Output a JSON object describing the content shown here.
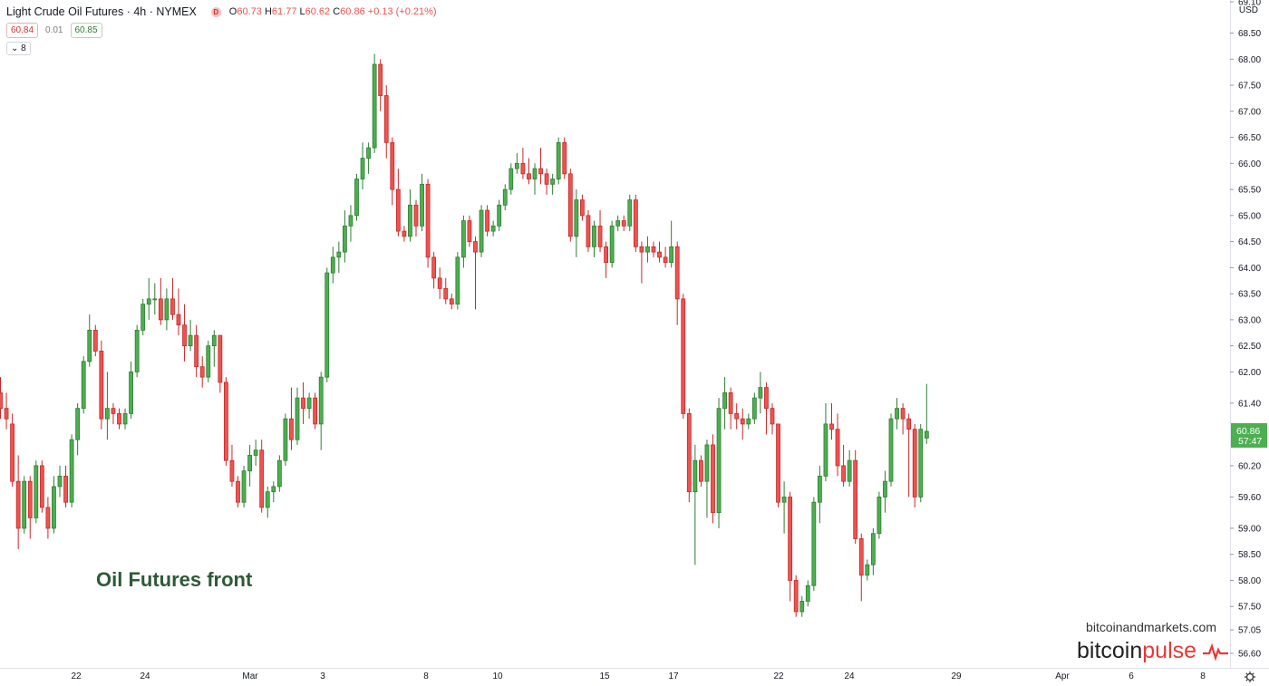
{
  "header": {
    "title": "Light Crude Oil Futures · 4h · NYMEX",
    "badge": "D",
    "ohlc": {
      "o_label": "O",
      "o": "60.73",
      "h_label": "H",
      "h": "61.77",
      "l_label": "L",
      "l": "60.62",
      "c_label": "C",
      "c": "60.86",
      "change": "+0.13 (+0.21%)"
    },
    "sell_price": "60.84",
    "spread": "0.01",
    "buy_price": "60.85",
    "indicator_label": "8"
  },
  "overlay_text": "Oil Futures front",
  "watermark": {
    "site": "bitcoinandmarkets.com",
    "brand_a": "bitcoin",
    "brand_b": "pulse"
  },
  "colors": {
    "up": "#4caf50",
    "down": "#ef5350",
    "up_border": "#2e7d32",
    "down_border": "#c62828",
    "last_price_bg": "#4caf50"
  },
  "chart_data": {
    "type": "candlestick",
    "currency": "USD",
    "y_ticks": [
      "56.60",
      "57.05",
      "57.50",
      "58.00",
      "58.50",
      "59.00",
      "59.60",
      "60.20",
      "61.40",
      "62.00",
      "62.50",
      "63.00",
      "63.50",
      "64.00",
      "64.50",
      "65.00",
      "65.50",
      "66.00",
      "66.50",
      "67.00",
      "67.50",
      "68.00",
      "68.50",
      "69.10"
    ],
    "ylim": [
      56.3,
      69.2
    ],
    "x_ticks": [
      "22",
      "24",
      "Mar",
      "3",
      "8",
      "10",
      "15",
      "17",
      "22",
      "24",
      "29",
      "Apr",
      "6",
      "8"
    ],
    "last_price": "60.86",
    "countdown": "57:47",
    "candles": [
      [
        61.6,
        61.9,
        61.1,
        61.3
      ],
      [
        61.3,
        61.6,
        60.9,
        61.1
      ],
      [
        61.0,
        61.2,
        59.8,
        59.9
      ],
      [
        59.9,
        60.4,
        58.6,
        59.0
      ],
      [
        59.0,
        60.0,
        58.9,
        59.9
      ],
      [
        59.9,
        60.0,
        58.8,
        59.2
      ],
      [
        59.2,
        60.3,
        59.1,
        60.2
      ],
      [
        60.2,
        60.3,
        59.3,
        59.4
      ],
      [
        59.4,
        59.6,
        58.8,
        59.0
      ],
      [
        59.0,
        60.0,
        58.9,
        59.8
      ],
      [
        59.8,
        60.2,
        59.6,
        60.0
      ],
      [
        60.0,
        60.2,
        59.4,
        59.5
      ],
      [
        59.5,
        60.8,
        59.4,
        60.7
      ],
      [
        60.7,
        61.4,
        60.4,
        61.3
      ],
      [
        61.3,
        62.3,
        61.2,
        62.2
      ],
      [
        62.2,
        63.1,
        62.1,
        62.8
      ],
      [
        62.8,
        62.9,
        62.3,
        62.4
      ],
      [
        62.4,
        62.6,
        60.9,
        61.1
      ],
      [
        61.1,
        62.0,
        60.7,
        61.3
      ],
      [
        61.3,
        61.4,
        61.0,
        61.2
      ],
      [
        61.2,
        61.3,
        60.9,
        61.0
      ],
      [
        61.0,
        61.3,
        60.9,
        61.2
      ],
      [
        61.2,
        62.2,
        61.1,
        62.0
      ],
      [
        62.0,
        62.9,
        61.9,
        62.8
      ],
      [
        62.8,
        63.4,
        62.7,
        63.3
      ],
      [
        63.3,
        63.8,
        63.0,
        63.4
      ],
      [
        63.4,
        63.7,
        63.1,
        63.4
      ],
      [
        63.4,
        63.8,
        62.9,
        63.0
      ],
      [
        63.0,
        63.6,
        62.8,
        63.4
      ],
      [
        63.4,
        63.8,
        63.0,
        63.1
      ],
      [
        63.1,
        63.6,
        62.7,
        62.9
      ],
      [
        62.9,
        63.3,
        62.2,
        62.5
      ],
      [
        62.5,
        63.0,
        62.4,
        62.7
      ],
      [
        62.7,
        62.9,
        61.9,
        62.1
      ],
      [
        62.1,
        62.3,
        61.7,
        61.9
      ],
      [
        61.9,
        62.6,
        61.8,
        62.5
      ],
      [
        62.5,
        62.8,
        62.1,
        62.7
      ],
      [
        62.7,
        62.7,
        61.6,
        61.8
      ],
      [
        61.8,
        61.9,
        60.2,
        60.3
      ],
      [
        60.3,
        60.6,
        59.8,
        59.9
      ],
      [
        59.9,
        60.0,
        59.4,
        59.5
      ],
      [
        59.5,
        60.2,
        59.4,
        60.1
      ],
      [
        60.1,
        60.6,
        59.8,
        60.4
      ],
      [
        60.4,
        60.7,
        60.2,
        60.5
      ],
      [
        60.5,
        60.7,
        59.3,
        59.4
      ],
      [
        59.4,
        59.8,
        59.2,
        59.7
      ],
      [
        59.7,
        59.9,
        59.5,
        59.8
      ],
      [
        59.8,
        60.4,
        59.7,
        60.3
      ],
      [
        60.3,
        61.2,
        60.2,
        61.1
      ],
      [
        61.1,
        61.7,
        60.5,
        60.7
      ],
      [
        60.7,
        61.7,
        60.6,
        61.5
      ],
      [
        61.5,
        61.8,
        61.0,
        61.3
      ],
      [
        61.3,
        61.6,
        61.1,
        61.5
      ],
      [
        61.5,
        61.6,
        60.9,
        61.0
      ],
      [
        61.0,
        62.0,
        60.5,
        61.9
      ],
      [
        61.9,
        64.0,
        61.8,
        63.9
      ],
      [
        63.9,
        64.4,
        63.7,
        64.2
      ],
      [
        64.2,
        64.5,
        63.9,
        64.3
      ],
      [
        64.3,
        65.1,
        64.1,
        64.8
      ],
      [
        64.8,
        65.2,
        64.5,
        65.0
      ],
      [
        65.0,
        65.8,
        64.9,
        65.7
      ],
      [
        65.7,
        66.4,
        65.5,
        66.1
      ],
      [
        66.1,
        66.4,
        65.8,
        66.3
      ],
      [
        66.3,
        68.1,
        66.2,
        67.9
      ],
      [
        67.9,
        68.0,
        67.0,
        67.3
      ],
      [
        67.3,
        67.5,
        66.1,
        66.4
      ],
      [
        66.4,
        66.5,
        65.2,
        65.5
      ],
      [
        65.5,
        65.9,
        64.6,
        64.7
      ],
      [
        64.7,
        64.8,
        64.5,
        64.6
      ],
      [
        64.6,
        65.5,
        64.5,
        65.2
      ],
      [
        65.2,
        65.3,
        64.6,
        64.8
      ],
      [
        64.8,
        65.8,
        64.7,
        65.6
      ],
      [
        65.6,
        65.7,
        64.0,
        64.2
      ],
      [
        64.2,
        64.3,
        63.6,
        63.8
      ],
      [
        63.8,
        64.0,
        63.4,
        63.6
      ],
      [
        63.6,
        63.8,
        63.3,
        63.4
      ],
      [
        63.4,
        63.5,
        63.2,
        63.3
      ],
      [
        63.3,
        64.3,
        63.2,
        64.2
      ],
      [
        64.2,
        65.0,
        64.0,
        64.9
      ],
      [
        64.9,
        65.0,
        64.4,
        64.5
      ],
      [
        64.5,
        64.6,
        63.2,
        64.3
      ],
      [
        64.3,
        65.2,
        64.2,
        65.1
      ],
      [
        65.1,
        65.2,
        64.6,
        64.7
      ],
      [
        64.7,
        64.9,
        64.6,
        64.8
      ],
      [
        64.8,
        65.3,
        64.7,
        65.2
      ],
      [
        65.2,
        65.6,
        65.1,
        65.5
      ],
      [
        65.5,
        66.0,
        65.4,
        65.9
      ],
      [
        65.9,
        66.2,
        65.8,
        66.0
      ],
      [
        66.0,
        66.3,
        65.7,
        65.8
      ],
      [
        65.8,
        66.1,
        65.6,
        65.7
      ],
      [
        65.7,
        66.0,
        65.4,
        65.9
      ],
      [
        65.9,
        66.3,
        65.6,
        65.8
      ],
      [
        65.8,
        65.9,
        65.4,
        65.6
      ],
      [
        65.6,
        65.8,
        65.4,
        65.7
      ],
      [
        65.7,
        66.5,
        65.6,
        66.4
      ],
      [
        66.4,
        66.5,
        65.7,
        65.8
      ],
      [
        65.8,
        65.9,
        64.5,
        64.6
      ],
      [
        64.6,
        65.5,
        64.2,
        65.3
      ],
      [
        65.3,
        65.4,
        64.9,
        65.0
      ],
      [
        65.0,
        65.1,
        64.3,
        64.4
      ],
      [
        64.4,
        64.9,
        64.2,
        64.8
      ],
      [
        64.8,
        65.1,
        64.3,
        64.4
      ],
      [
        64.4,
        64.5,
        63.8,
        64.1
      ],
      [
        64.1,
        64.9,
        64.0,
        64.8
      ],
      [
        64.8,
        65.0,
        64.7,
        64.9
      ],
      [
        64.9,
        65.0,
        64.7,
        64.8
      ],
      [
        64.8,
        65.4,
        64.7,
        65.3
      ],
      [
        65.3,
        65.4,
        64.3,
        64.4
      ],
      [
        64.4,
        64.5,
        63.7,
        64.3
      ],
      [
        64.3,
        64.6,
        64.1,
        64.4
      ],
      [
        64.4,
        64.5,
        64.2,
        64.3
      ],
      [
        64.3,
        64.5,
        64.1,
        64.2
      ],
      [
        64.2,
        64.4,
        64.0,
        64.1
      ],
      [
        64.1,
        64.9,
        64.0,
        64.4
      ],
      [
        64.4,
        64.5,
        62.9,
        63.4
      ],
      [
        63.4,
        63.5,
        61.1,
        61.2
      ],
      [
        61.2,
        61.3,
        59.5,
        59.7
      ],
      [
        59.7,
        60.6,
        58.3,
        60.3
      ],
      [
        60.3,
        60.4,
        59.8,
        59.9
      ],
      [
        59.9,
        60.7,
        59.2,
        60.6
      ],
      [
        60.6,
        60.8,
        59.1,
        59.3
      ],
      [
        59.3,
        61.5,
        59.0,
        61.3
      ],
      [
        61.3,
        61.9,
        60.9,
        61.6
      ],
      [
        61.6,
        61.7,
        60.9,
        61.2
      ],
      [
        61.2,
        61.4,
        60.9,
        61.1
      ],
      [
        61.1,
        61.3,
        60.7,
        61.0
      ],
      [
        61.0,
        61.2,
        60.9,
        61.1
      ],
      [
        61.1,
        61.6,
        61.0,
        61.5
      ],
      [
        61.5,
        62.0,
        61.2,
        61.7
      ],
      [
        61.7,
        61.8,
        60.8,
        61.3
      ],
      [
        61.3,
        61.4,
        60.8,
        61.0
      ],
      [
        61.0,
        61.0,
        59.4,
        59.5
      ],
      [
        59.5,
        59.9,
        58.9,
        59.6
      ],
      [
        59.6,
        59.7,
        57.6,
        58.0
      ],
      [
        58.0,
        58.1,
        57.3,
        57.4
      ],
      [
        57.4,
        57.7,
        57.3,
        57.6
      ],
      [
        57.6,
        58.0,
        57.5,
        57.9
      ],
      [
        57.9,
        59.6,
        57.8,
        59.5
      ],
      [
        59.5,
        60.2,
        59.1,
        60.0
      ],
      [
        60.0,
        61.4,
        59.9,
        61.0
      ],
      [
        61.0,
        61.4,
        60.7,
        60.9
      ],
      [
        60.9,
        61.2,
        60.0,
        60.2
      ],
      [
        60.2,
        60.6,
        59.8,
        59.9
      ],
      [
        59.9,
        60.5,
        59.8,
        60.3
      ],
      [
        60.3,
        60.5,
        58.7,
        58.8
      ],
      [
        58.8,
        58.9,
        57.6,
        58.1
      ],
      [
        58.1,
        58.4,
        58.0,
        58.3
      ],
      [
        58.3,
        59.0,
        58.1,
        58.9
      ],
      [
        58.9,
        59.7,
        58.8,
        59.6
      ],
      [
        59.6,
        60.1,
        59.3,
        59.9
      ],
      [
        59.9,
        61.2,
        59.8,
        61.1
      ],
      [
        61.1,
        61.5,
        60.9,
        61.3
      ],
      [
        61.3,
        61.4,
        60.8,
        61.1
      ],
      [
        61.1,
        61.2,
        59.6,
        60.9
      ],
      [
        60.9,
        61.0,
        59.4,
        59.6
      ],
      [
        59.6,
        61.0,
        59.5,
        60.9
      ],
      [
        60.73,
        61.77,
        60.62,
        60.86
      ]
    ]
  }
}
